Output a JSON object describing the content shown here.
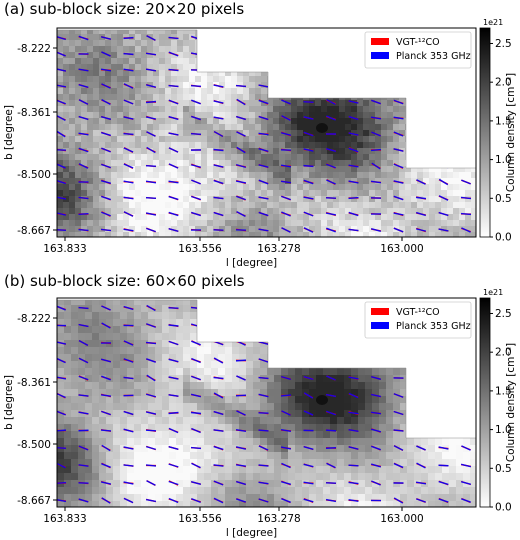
{
  "figure": {
    "panel_a_title": "(a) sub-block size: 20×20 pixels",
    "panel_b_title": "(b) sub-block size: 60×60 pixels"
  },
  "chart_data": [
    {
      "type": "heatmap",
      "title": "(a) sub-block size: 20×20 pixels",
      "xlabel": "l [degree]",
      "ylabel": "b [degree]",
      "xticks": [
        "163.833",
        "163.556",
        "163.278",
        "163.000"
      ],
      "yticks": [
        "-8.222",
        "-8.361",
        "-8.500",
        "-8.667"
      ],
      "colorbar": {
        "label": "Column density [cm⁻²]",
        "scale_text": "1e21",
        "ticks": [
          "0.0",
          "0.5",
          "1.0",
          "1.5",
          "2.0",
          "2.5"
        ],
        "range": [
          0.0,
          2.7
        ]
      },
      "legend": {
        "position": "top-right",
        "entries": [
          {
            "name": "VGT-¹²CO",
            "color": "#ff0000"
          },
          {
            "name": "Planck 353 GHz",
            "color": "#0000ff"
          }
        ]
      },
      "colormap": "gray_r"
    },
    {
      "type": "heatmap",
      "title": "(b) sub-block size: 60×60 pixels",
      "xlabel": "l [degree]",
      "ylabel": "b [degree]",
      "xticks": [
        "163.833",
        "163.556",
        "163.278",
        "163.000"
      ],
      "yticks": [
        "-8.222",
        "-8.361",
        "-8.500",
        "-8.667"
      ],
      "colorbar": {
        "label": "Column density [cm⁻²]",
        "scale_text": "1e21",
        "ticks": [
          "0.0",
          "0.5",
          "1.0",
          "1.5",
          "2.0",
          "2.5"
        ],
        "range": [
          0.0,
          2.7
        ]
      },
      "legend": {
        "position": "top-right",
        "entries": [
          {
            "name": "VGT-¹²CO",
            "color": "#ff0000"
          },
          {
            "name": "Planck 353 GHz",
            "color": "#0000ff"
          }
        ]
      },
      "colormap": "gray_r"
    }
  ]
}
